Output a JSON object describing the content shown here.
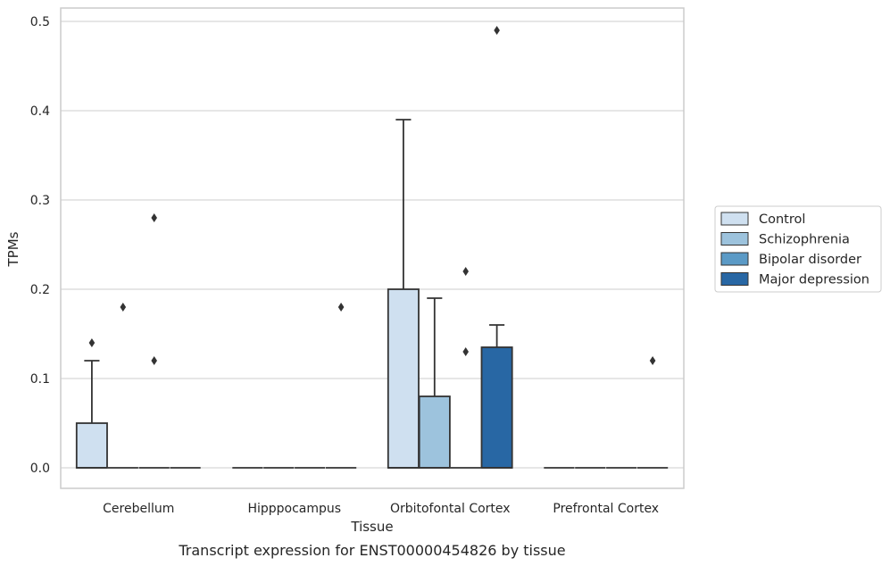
{
  "chart_data": {
    "type": "box",
    "title": "",
    "xlabel": "Tissue",
    "ylabel": "TPMs",
    "caption": "Transcript expression for ENST00000454826 by tissue",
    "ylim": [
      -0.023,
      0.515
    ],
    "yticks": [
      0.0,
      0.1,
      0.2,
      0.3,
      0.4,
      0.5
    ],
    "ytick_labels": [
      "0.0",
      "0.1",
      "0.2",
      "0.3",
      "0.4",
      "0.5"
    ],
    "categories": [
      "Cerebellum",
      "Hipppocampus",
      "Orbitofontal Cortex",
      "Prefrontal Cortex"
    ],
    "grid": "horizontal",
    "legend_position": "right",
    "series": [
      {
        "name": "Control",
        "color": "#cfe0f0",
        "boxes": [
          {
            "q1": 0,
            "median": 0,
            "q3": 0.05,
            "whisker_low": 0,
            "whisker_high": 0.12,
            "outliers": [
              0.14
            ]
          },
          {
            "q1": 0,
            "median": 0,
            "q3": 0,
            "whisker_low": 0,
            "whisker_high": 0,
            "outliers": []
          },
          {
            "q1": 0,
            "median": 0,
            "q3": 0.2,
            "whisker_low": 0,
            "whisker_high": 0.39,
            "outliers": []
          },
          {
            "q1": 0,
            "median": 0,
            "q3": 0,
            "whisker_low": 0,
            "whisker_high": 0,
            "outliers": []
          }
        ]
      },
      {
        "name": "Schizophrenia",
        "color": "#9dc3dd",
        "boxes": [
          {
            "q1": 0,
            "median": 0,
            "q3": 0,
            "whisker_low": 0,
            "whisker_high": 0,
            "outliers": [
              0.18
            ]
          },
          {
            "q1": 0,
            "median": 0,
            "q3": 0,
            "whisker_low": 0,
            "whisker_high": 0,
            "outliers": []
          },
          {
            "q1": 0,
            "median": 0,
            "q3": 0.08,
            "whisker_low": 0,
            "whisker_high": 0.19,
            "outliers": []
          },
          {
            "q1": 0,
            "median": 0,
            "q3": 0,
            "whisker_low": 0,
            "whisker_high": 0,
            "outliers": []
          }
        ]
      },
      {
        "name": "Bipolar disorder",
        "color": "#5b9ac6",
        "boxes": [
          {
            "q1": 0,
            "median": 0,
            "q3": 0,
            "whisker_low": 0,
            "whisker_high": 0,
            "outliers": [
              0.12,
              0.28
            ]
          },
          {
            "q1": 0,
            "median": 0,
            "q3": 0,
            "whisker_low": 0,
            "whisker_high": 0,
            "outliers": []
          },
          {
            "q1": 0,
            "median": 0,
            "q3": 0,
            "whisker_low": 0,
            "whisker_high": 0,
            "outliers": [
              0.13,
              0.22
            ]
          },
          {
            "q1": 0,
            "median": 0,
            "q3": 0,
            "whisker_low": 0,
            "whisker_high": 0,
            "outliers": []
          }
        ]
      },
      {
        "name": "Major depression",
        "color": "#2867a4",
        "boxes": [
          {
            "q1": 0,
            "median": 0,
            "q3": 0,
            "whisker_low": 0,
            "whisker_high": 0,
            "outliers": []
          },
          {
            "q1": 0,
            "median": 0,
            "q3": 0,
            "whisker_low": 0,
            "whisker_high": 0,
            "outliers": [
              0.18
            ]
          },
          {
            "q1": 0,
            "median": 0,
            "q3": 0.135,
            "whisker_low": 0,
            "whisker_high": 0.16,
            "outliers": [
              0.49
            ]
          },
          {
            "q1": 0,
            "median": 0,
            "q3": 0,
            "whisker_low": 0,
            "whisker_high": 0,
            "outliers": [
              0.12
            ]
          }
        ]
      }
    ],
    "colors": {
      "grid": "#cccccc",
      "frame": "#cccccc",
      "line": "#333333",
      "text": "#262626"
    }
  }
}
